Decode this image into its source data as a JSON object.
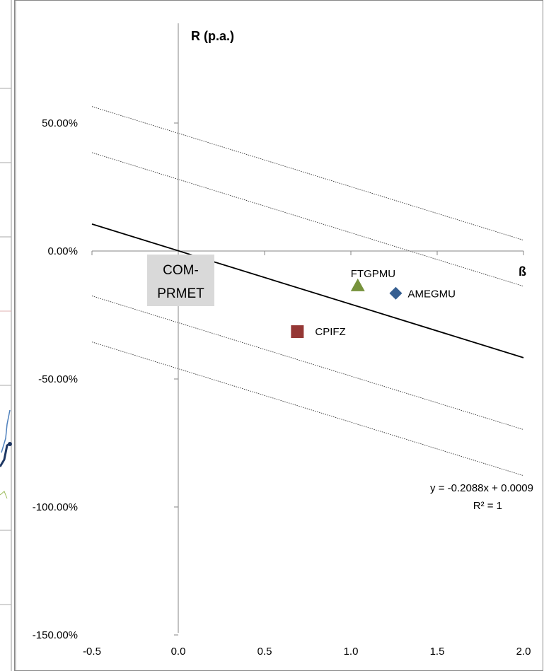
{
  "chart_data": {
    "type": "scatter",
    "title": "",
    "ylabel": "R (p.a.)",
    "xlabel": "ß",
    "xlim": [
      -0.5,
      2.0
    ],
    "ylim": [
      -1.5,
      0.75
    ],
    "x_ticks": [
      "-0.5",
      "0.0",
      "0.5",
      "1.0",
      "1.5",
      "2.0"
    ],
    "x_tick_values": [
      -0.5,
      0.0,
      0.5,
      1.0,
      1.5,
      2.0
    ],
    "y_ticks": [
      "50.00%",
      "0.00%",
      "-50.00%",
      "-100.00%",
      "-150.00%"
    ],
    "y_tick_values": [
      0.5,
      0.0,
      -0.5,
      -1.0,
      -1.5
    ],
    "series": [
      {
        "name": "FTGPMU",
        "marker": "triangle",
        "color": "#76923c",
        "x": 1.04,
        "y": -0.135
      },
      {
        "name": "AMEGMU",
        "marker": "diamond",
        "color": "#365f91",
        "x": 1.26,
        "y": -0.165
      },
      {
        "name": "CPIFZ",
        "marker": "square",
        "color": "#953735",
        "x": 0.69,
        "y": -0.315
      }
    ],
    "trendline": {
      "slope": -0.2088,
      "intercept": 0.0009,
      "equation": "y = -0.2088x + 0.0009",
      "r2": "R² = 1",
      "x_range": [
        -0.5,
        2.0
      ]
    },
    "dotted_lines": [
      {
        "intercept": 0.46,
        "slope": -0.2088
      },
      {
        "intercept": 0.28,
        "slope": -0.2088
      },
      {
        "intercept": -0.28,
        "slope": -0.2088
      },
      {
        "intercept": -0.46,
        "slope": -0.2088
      }
    ],
    "origin_box": {
      "line1": "COM-",
      "line2": "PRMET"
    },
    "grid": false
  },
  "colors": {
    "axis": "#868686",
    "trend": "#000000",
    "box_bg": "#d9d9d9"
  }
}
